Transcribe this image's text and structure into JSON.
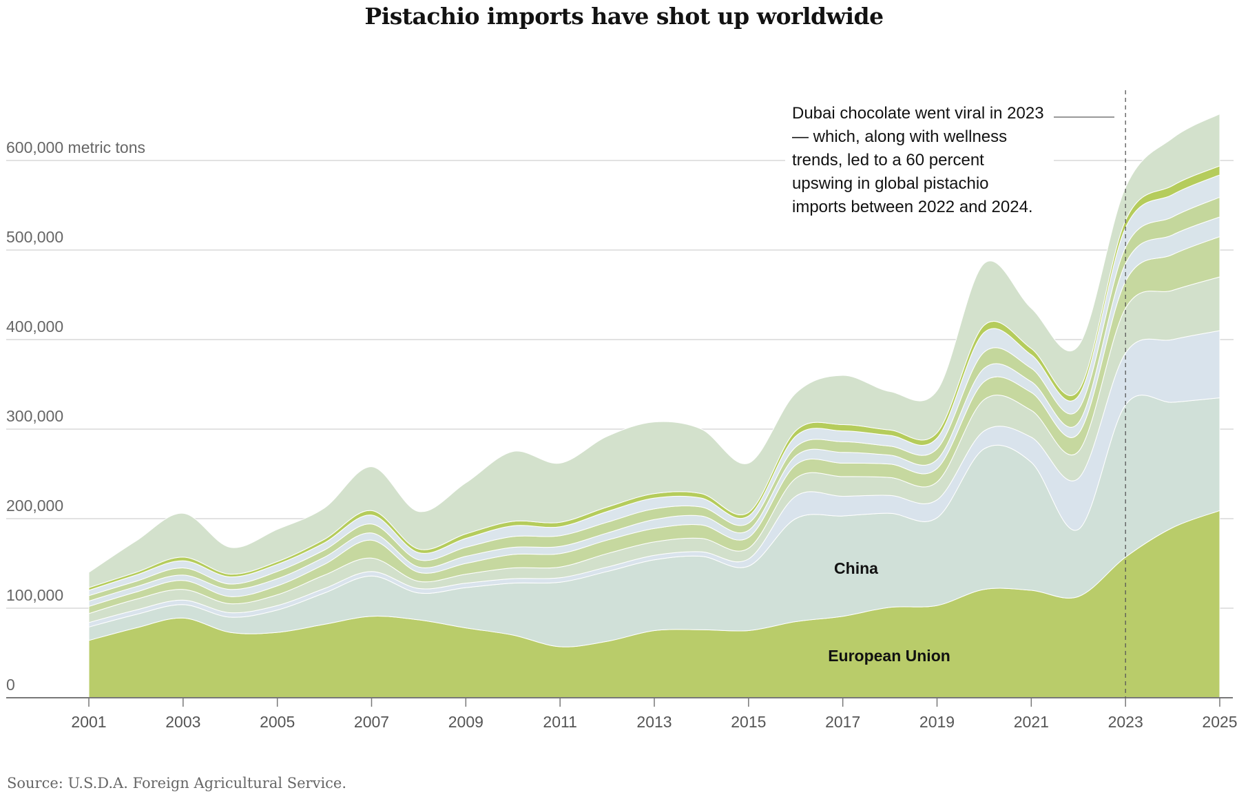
{
  "chart_data": {
    "type": "area",
    "stacked": true,
    "title": "Pistachio imports have shot up worldwide",
    "source": "Source: U.S.D.A. Foreign Agricultural Service.",
    "x": [
      2001,
      2002,
      2003,
      2004,
      2005,
      2006,
      2007,
      2008,
      2009,
      2010,
      2011,
      2012,
      2013,
      2014,
      2015,
      2016,
      2017,
      2018,
      2019,
      2020,
      2021,
      2022,
      2023,
      2024,
      2025
    ],
    "xticks": [
      "2001",
      "2003",
      "2005",
      "2007",
      "2009",
      "2011",
      "2013",
      "2015",
      "2017",
      "2019",
      "2021",
      "2023",
      "2025"
    ],
    "yticks": [
      {
        "value": 0,
        "label": "0"
      },
      {
        "value": 100000,
        "label": "100,000"
      },
      {
        "value": 200000,
        "label": "200,000"
      },
      {
        "value": 300000,
        "label": "300,000"
      },
      {
        "value": 400000,
        "label": "400,000"
      },
      {
        "value": 500000,
        "label": "500,000"
      },
      {
        "value": 600000,
        "label": "600,000 metric tons"
      }
    ],
    "ylim": [
      0,
      660000
    ],
    "ylabel_unit": "metric tons",
    "grid": true,
    "series": [
      {
        "name": "European Union",
        "color": "#b9cc6a",
        "values": [
          64000,
          78000,
          89000,
          73000,
          73000,
          82000,
          91000,
          87000,
          78000,
          70000,
          57000,
          63000,
          75000,
          76000,
          75000,
          85000,
          91000,
          101000,
          103000,
          121000,
          120000,
          113000,
          157000,
          190000,
          209000
        ]
      },
      {
        "name": "China",
        "color": "#d0e0d8",
        "values": [
          15000,
          15000,
          15000,
          17000,
          25000,
          35000,
          45000,
          30000,
          45000,
          58000,
          72000,
          78000,
          79000,
          82000,
          72000,
          115000,
          112000,
          105000,
          98000,
          157000,
          143000,
          75000,
          170000,
          140000,
          126000
        ]
      },
      {
        "color": "#d9e3ec",
        "values": [
          5000,
          5000,
          5000,
          5000,
          5000,
          5000,
          5000,
          5000,
          5000,
          5000,
          5000,
          5000,
          5000,
          5000,
          8000,
          25000,
          22000,
          20000,
          20000,
          20000,
          28000,
          57000,
          58000,
          70000,
          75000
        ]
      },
      {
        "color": "#d2e0cb",
        "values": [
          10000,
          12000,
          12000,
          10000,
          12000,
          15000,
          15000,
          8000,
          10000,
          12000,
          12000,
          15000,
          15000,
          15000,
          12000,
          20000,
          22000,
          20000,
          20000,
          35000,
          30000,
          30000,
          50000,
          55000,
          60000
        ]
      },
      {
        "color": "#c6d89f",
        "values": [
          8000,
          8000,
          10000,
          8000,
          10000,
          12000,
          20000,
          10000,
          12000,
          15000,
          15000,
          15000,
          15000,
          15000,
          12000,
          15000,
          15000,
          15000,
          15000,
          20000,
          20000,
          20000,
          30000,
          40000,
          45000
        ]
      },
      {
        "color": "#d9e4ea",
        "values": [
          6000,
          6000,
          6000,
          8000,
          8000,
          8000,
          8000,
          6000,
          8000,
          8000,
          8000,
          8000,
          10000,
          10000,
          8000,
          10000,
          12000,
          10000,
          10000,
          15000,
          12000,
          12000,
          20000,
          22000,
          22000
        ]
      },
      {
        "color": "#c4d79c",
        "values": [
          6000,
          6000,
          8000,
          6000,
          8000,
          8000,
          10000,
          8000,
          10000,
          12000,
          12000,
          12000,
          12000,
          10000,
          8000,
          10000,
          12000,
          10000,
          12000,
          18000,
          15000,
          15000,
          18000,
          20000,
          22000
        ]
      },
      {
        "color": "#dbe5ec",
        "values": [
          6000,
          7000,
          8000,
          8000,
          8000,
          8000,
          10000,
          8000,
          10000,
          12000,
          10000,
          12000,
          12000,
          10000,
          8000,
          12000,
          12000,
          12000,
          12000,
          22000,
          15000,
          15000,
          22000,
          25000,
          25000
        ]
      },
      {
        "color": "#b5cc5c",
        "values": [
          3000,
          3000,
          4000,
          3000,
          3000,
          4000,
          5000,
          4000,
          5000,
          5000,
          5000,
          5000,
          5000,
          5000,
          4000,
          6000,
          7000,
          6000,
          6000,
          8000,
          7000,
          6000,
          8000,
          10000,
          10000
        ]
      },
      {
        "color": "#d3e1cc",
        "values": [
          17000,
          35000,
          49000,
          30000,
          36000,
          35000,
          49000,
          42000,
          57000,
          78000,
          66000,
          79000,
          80000,
          72000,
          55000,
          42000,
          55000,
          43000,
          47000,
          69000,
          45000,
          50000,
          37000,
          53000,
          58000
        ]
      }
    ],
    "series_labels": [
      {
        "series": "European Union",
        "text": "European Union"
      },
      {
        "series": "China",
        "text": "China"
      }
    ],
    "annotation": {
      "x": 2023,
      "text": "Dubai chocolate went viral in 2023 — which, along with wellness trends, led to a 60 percent upswing in global pistachio imports between 2022 and 2024."
    }
  }
}
